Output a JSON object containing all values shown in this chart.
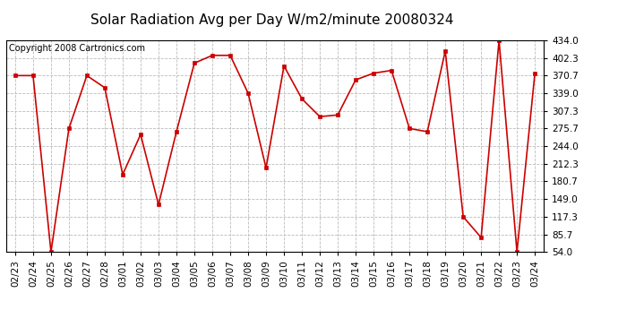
{
  "title": "Solar Radiation Avg per Day W/m2/minute 20080324",
  "copyright_text": "Copyright 2008 Cartronics.com",
  "x_labels": [
    "02/23",
    "02/24",
    "02/25",
    "02/26",
    "02/27",
    "02/28",
    "03/01",
    "03/02",
    "03/03",
    "03/04",
    "03/05",
    "03/06",
    "03/07",
    "03/08",
    "03/09",
    "03/10",
    "03/11",
    "03/12",
    "03/13",
    "03/14",
    "03/15",
    "03/16",
    "03/17",
    "03/18",
    "03/19",
    "03/20",
    "03/21",
    "03/22",
    "03/23",
    "03/24"
  ],
  "values": [
    370.7,
    370.7,
    54.0,
    275.7,
    370.7,
    349.0,
    193.0,
    265.0,
    139.0,
    270.0,
    393.0,
    407.0,
    407.0,
    339.0,
    205.0,
    388.0,
    329.0,
    297.0,
    300.0,
    363.0,
    375.0,
    380.0,
    275.7,
    270.0,
    415.0,
    117.3,
    80.0,
    434.0,
    54.0,
    375.0
  ],
  "y_ticks": [
    54.0,
    85.7,
    117.3,
    149.0,
    180.7,
    212.3,
    244.0,
    275.7,
    307.3,
    339.0,
    370.7,
    402.3,
    434.0
  ],
  "y_min": 54.0,
  "y_max": 434.0,
  "line_color": "#cc0000",
  "marker_color": "#cc0000",
  "bg_color": "#ffffff",
  "plot_bg_color": "#ffffff",
  "grid_color": "#bbbbbb",
  "title_fontsize": 11,
  "copyright_fontsize": 7,
  "tick_fontsize": 7.5
}
